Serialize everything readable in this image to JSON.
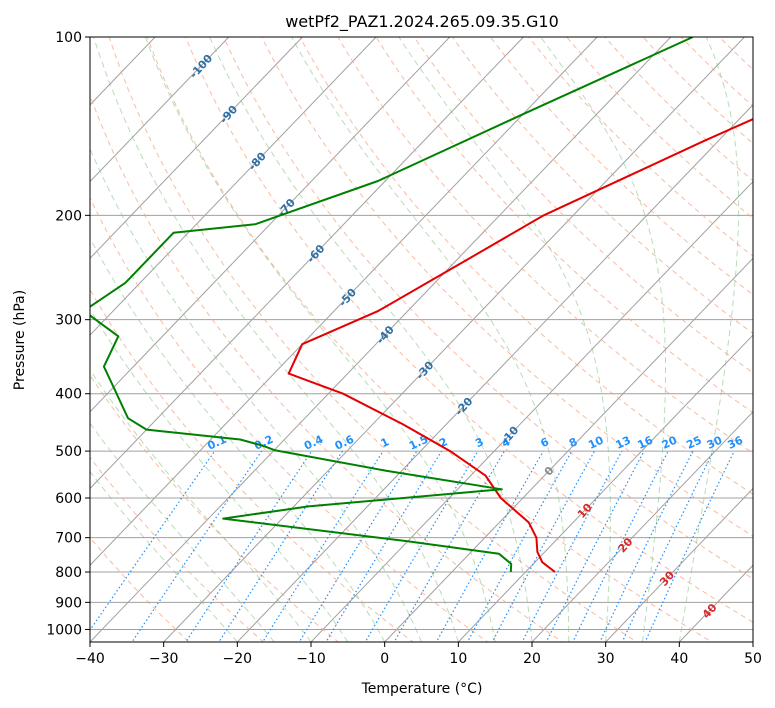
{
  "chart_data": {
    "type": "line",
    "title": "wetPf2_PAZ1.2024.265.09.35.G10",
    "xlabel": "Temperature (°C)",
    "ylabel": "Pressure (hPa)",
    "xlim": [
      -40,
      50
    ],
    "ylim": [
      1050,
      100
    ],
    "y_scale": "log",
    "skew": "skew-T log-P",
    "grid": true,
    "x_ticks": [
      -40,
      -30,
      -20,
      -10,
      0,
      10,
      20,
      30,
      40,
      50
    ],
    "x_tick_labels": [
      "−40",
      "−30",
      "−20",
      "−10",
      "0",
      "10",
      "20",
      "30",
      "40",
      "50"
    ],
    "y_ticks": [
      1000,
      900,
      800,
      700,
      600,
      500,
      400,
      300,
      200,
      100
    ],
    "y_tick_labels": [
      "1000",
      "900",
      "800",
      "700",
      "600",
      "500",
      "400",
      "300",
      "200",
      "100"
    ],
    "dry_adiabat_labels": [
      "-100",
      "-90",
      "-80",
      "-70",
      "-60",
      "-50",
      "-40",
      "-30",
      "-20",
      "-10",
      "0",
      "10",
      "20",
      "30",
      "40"
    ],
    "mixing_ratio_labels": [
      "0.1",
      "0.2",
      "0.4",
      "0.6",
      "1",
      "1.5",
      "2",
      "3",
      "4",
      "6",
      "8",
      "10",
      "13",
      "16",
      "20",
      "25",
      "30",
      "36"
    ],
    "colors": {
      "temperature": "#e50000",
      "dewpoint": "#008000",
      "isotherm": "#a0a0a0",
      "dry_adiabat": "#f4a582",
      "moist_adiabat": "#7fbf7f",
      "mixing_ratio": "#1e90ff",
      "dry_label": "#2c6fa8",
      "warm_label": "#d62728"
    },
    "series": [
      {
        "role": "temperature",
        "points": [
          [
            -7.5,
            100
          ],
          [
            -12,
            120
          ],
          [
            -22,
            150
          ],
          [
            -34,
            200
          ],
          [
            -40,
            250
          ],
          [
            -44,
            290
          ],
          [
            -50,
            330
          ],
          [
            -48,
            370
          ],
          [
            -38,
            400
          ],
          [
            -26,
            450
          ],
          [
            -16,
            500
          ],
          [
            -8,
            550
          ],
          [
            -3,
            600
          ],
          [
            4,
            660
          ],
          [
            7,
            700
          ],
          [
            9,
            740
          ],
          [
            11,
            770
          ],
          [
            14,
            800
          ]
        ]
      },
      {
        "role": "dewpoint",
        "points": [
          [
            -37,
            100
          ],
          [
            -50,
            135
          ],
          [
            -61,
            175
          ],
          [
            -72,
            207
          ],
          [
            -82,
            214
          ],
          [
            -82,
            260
          ],
          [
            -84,
            290
          ],
          [
            -76,
            320
          ],
          [
            -74,
            360
          ],
          [
            -70,
            390
          ],
          [
            -64,
            440
          ],
          [
            -60,
            460
          ],
          [
            -46,
            478
          ],
          [
            -42,
            490
          ],
          [
            -40,
            498
          ],
          [
            -22,
            540
          ],
          [
            -4,
            580
          ],
          [
            -28,
            620
          ],
          [
            -38,
            650
          ],
          [
            -10,
            710
          ],
          [
            4,
            745
          ],
          [
            7,
            775
          ],
          [
            8,
            800
          ]
        ]
      }
    ]
  }
}
